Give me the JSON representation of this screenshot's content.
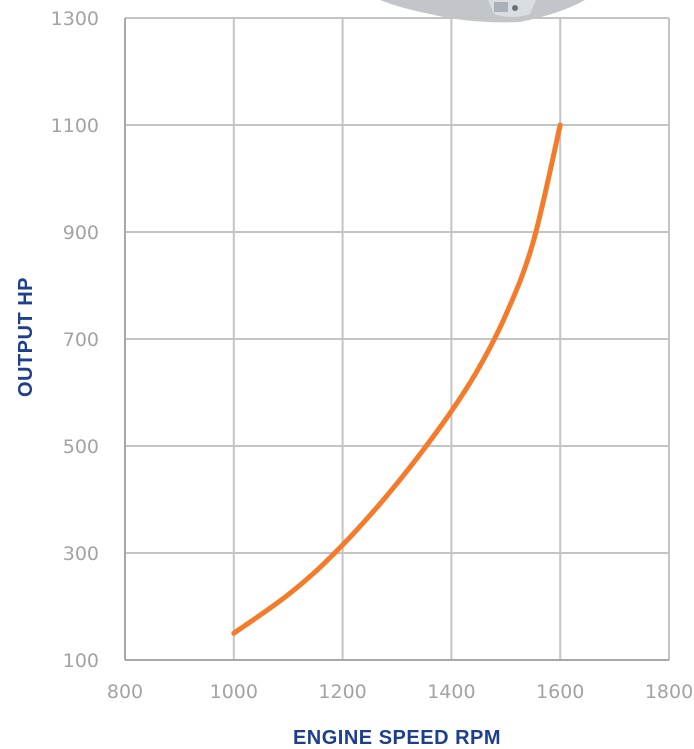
{
  "chart_data": {
    "type": "line",
    "title": "",
    "xlabel": "ENGINE SPEED RPM",
    "ylabel": "OUTPUT HP",
    "xlim": [
      800,
      1800
    ],
    "ylim": [
      100,
      1300
    ],
    "x_ticks": [
      "800",
      "1000",
      "1200",
      "1400",
      "1600",
      "1800"
    ],
    "y_ticks": [
      "100",
      "300",
      "500",
      "700",
      "900",
      "1100",
      "1300"
    ],
    "grid": true,
    "series": [
      {
        "color": "#f47b2a",
        "x": [
          1000,
          1050,
          1100,
          1150,
          1200,
          1250,
          1300,
          1350,
          1400,
          1450,
          1500,
          1550,
          1600
        ],
        "y": [
          150,
          185,
          222,
          265,
          315,
          370,
          430,
          495,
          565,
          645,
          745,
          880,
          1100
        ]
      }
    ]
  },
  "decoration": {
    "engine_image": "engine-photo"
  }
}
